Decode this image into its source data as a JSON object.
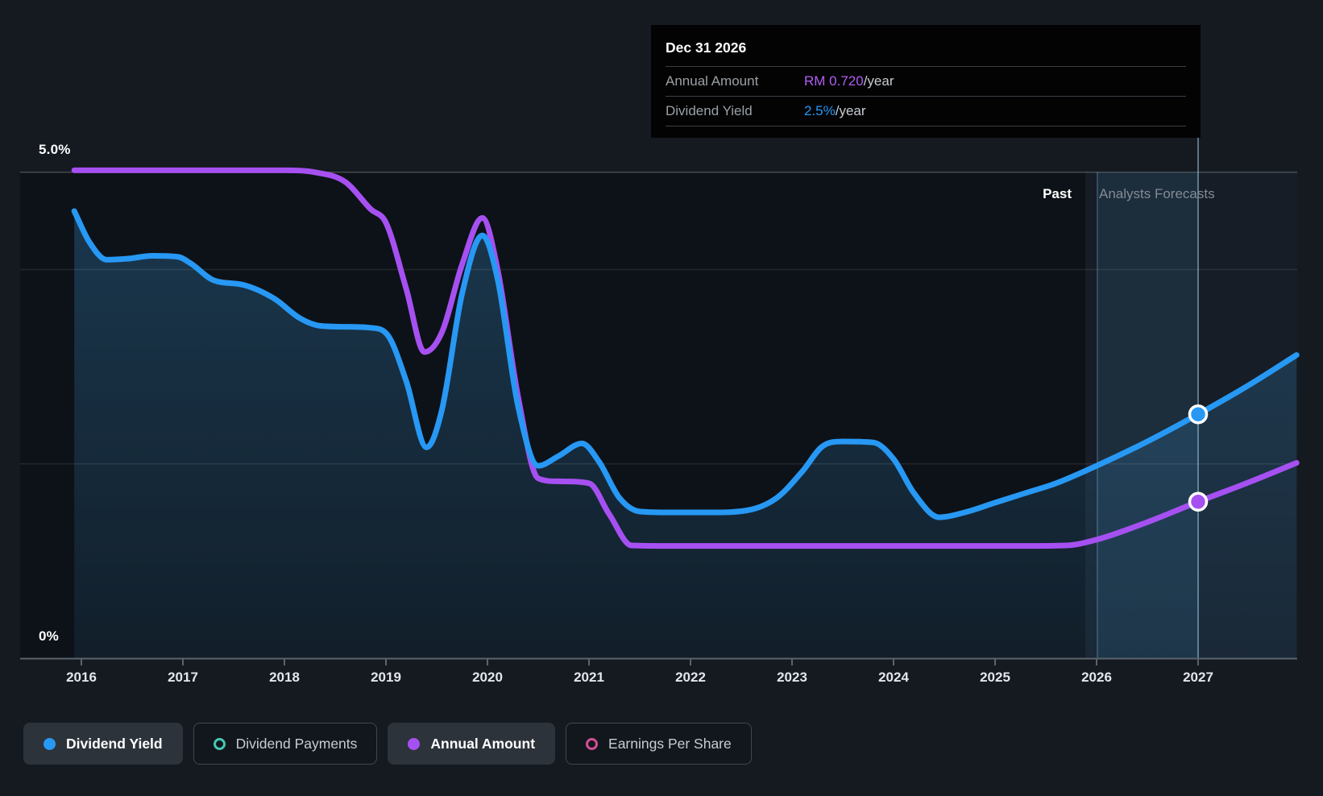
{
  "page": {
    "background": "#151a21"
  },
  "tooltip": {
    "title": "Dec 31 2026",
    "rows": [
      {
        "label": "Annual Amount",
        "value": "RM 0.720",
        "suffix": "/year",
        "value_color": "#b15ef5"
      },
      {
        "label": "Dividend Yield",
        "value": "2.5%",
        "suffix": "/year",
        "value_color": "#2798f4"
      }
    ]
  },
  "region_labels": {
    "past": "Past",
    "forecasts": "Analysts Forecasts"
  },
  "legend": {
    "items": [
      {
        "label": "Dividend Yield",
        "color": "#2798f4",
        "swatch": "filled",
        "active": true
      },
      {
        "label": "Dividend Payments",
        "color": "#45c7b3",
        "swatch": "outline",
        "active": false
      },
      {
        "label": "Annual Amount",
        "color": "#a650f2",
        "swatch": "filled",
        "active": true
      },
      {
        "label": "Earnings Per Share",
        "color": "#d04f96",
        "swatch": "outline",
        "active": false
      }
    ]
  },
  "chart_data": {
    "type": "line",
    "title": "Dividend yield past performance and analyst forecast",
    "x_axis": {
      "tick_labels": [
        "2016",
        "2017",
        "2018",
        "2019",
        "2020",
        "2021",
        "2022",
        "2023",
        "2024",
        "2025",
        "2026",
        "2027"
      ],
      "tick_years": [
        2016,
        2017,
        2018,
        2019,
        2020,
        2021,
        2022,
        2023,
        2024,
        2025,
        2026,
        2027
      ],
      "range": [
        2015.9,
        2028.0
      ]
    },
    "y_axis": {
      "label": "Dividend Yield",
      "unit": "%",
      "range": [
        0,
        5
      ],
      "top_label": "5.0%",
      "bottom_label": "0%",
      "gridlines_pct": [
        5,
        4,
        2
      ]
    },
    "regions": {
      "past_until_year": 2025.89,
      "highlight_year_range": [
        2026,
        2027
      ]
    },
    "hover": {
      "date": "Dec 31 2026",
      "year": 2027.0,
      "dividend_yield_pct": 2.5,
      "annual_amount": "RM 0.720/year"
    },
    "series": [
      {
        "name": "Dividend Yield",
        "color": "#2798f4",
        "style": "line-with-area",
        "points": [
          [
            2015.93,
            4.6
          ],
          [
            2016.08,
            4.28
          ],
          [
            2016.25,
            4.1
          ],
          [
            2016.45,
            4.11
          ],
          [
            2016.7,
            4.14
          ],
          [
            2016.95,
            4.13
          ],
          [
            2017.08,
            4.06
          ],
          [
            2017.3,
            3.89
          ],
          [
            2017.6,
            3.84
          ],
          [
            2017.9,
            3.7
          ],
          [
            2018.15,
            3.5
          ],
          [
            2018.35,
            3.42
          ],
          [
            2018.6,
            3.41
          ],
          [
            2018.85,
            3.4
          ],
          [
            2019.02,
            3.32
          ],
          [
            2019.2,
            2.85
          ],
          [
            2019.4,
            2.17
          ],
          [
            2019.55,
            2.55
          ],
          [
            2019.75,
            3.75
          ],
          [
            2019.95,
            4.35
          ],
          [
            2020.1,
            3.9
          ],
          [
            2020.3,
            2.6
          ],
          [
            2020.5,
            1.98
          ],
          [
            2020.7,
            2.08
          ],
          [
            2020.93,
            2.21
          ],
          [
            2021.1,
            2.02
          ],
          [
            2021.3,
            1.65
          ],
          [
            2021.5,
            1.51
          ],
          [
            2021.8,
            1.5
          ],
          [
            2022.2,
            1.5
          ],
          [
            2022.55,
            1.52
          ],
          [
            2022.85,
            1.65
          ],
          [
            2023.1,
            1.92
          ],
          [
            2023.3,
            2.18
          ],
          [
            2023.5,
            2.23
          ],
          [
            2023.8,
            2.22
          ],
          [
            2024.0,
            2.05
          ],
          [
            2024.2,
            1.7
          ],
          [
            2024.45,
            1.45
          ],
          [
            2024.7,
            1.5
          ],
          [
            2025.0,
            1.6
          ],
          [
            2025.3,
            1.7
          ],
          [
            2025.6,
            1.8
          ],
          [
            2026.0,
            1.98
          ],
          [
            2026.5,
            2.23
          ],
          [
            2027.0,
            2.51
          ],
          [
            2027.5,
            2.81
          ],
          [
            2027.97,
            3.12
          ]
        ]
      },
      {
        "name": "Annual Amount",
        "color": "#a650f2",
        "style": "line",
        "unit_note": "overlaid on yield axis; known value RM 0.720/year at Dec 31 2026",
        "points": [
          [
            2015.93,
            5.02
          ],
          [
            2016.5,
            5.02
          ],
          [
            2017.0,
            5.02
          ],
          [
            2017.5,
            5.02
          ],
          [
            2018.0,
            5.02
          ],
          [
            2018.3,
            5.0
          ],
          [
            2018.6,
            4.9
          ],
          [
            2018.85,
            4.62
          ],
          [
            2019.0,
            4.48
          ],
          [
            2019.2,
            3.8
          ],
          [
            2019.38,
            3.15
          ],
          [
            2019.55,
            3.35
          ],
          [
            2019.75,
            4.05
          ],
          [
            2019.95,
            4.53
          ],
          [
            2020.1,
            4.0
          ],
          [
            2020.3,
            2.7
          ],
          [
            2020.5,
            1.85
          ],
          [
            2020.7,
            1.82
          ],
          [
            2021.0,
            1.8
          ],
          [
            2021.2,
            1.48
          ],
          [
            2021.42,
            1.16
          ],
          [
            2021.8,
            1.155
          ],
          [
            2022.5,
            1.155
          ],
          [
            2023.5,
            1.155
          ],
          [
            2024.5,
            1.155
          ],
          [
            2025.3,
            1.155
          ],
          [
            2025.7,
            1.16
          ],
          [
            2026.0,
            1.22
          ],
          [
            2026.5,
            1.4
          ],
          [
            2027.0,
            1.61
          ],
          [
            2027.5,
            1.81
          ],
          [
            2027.97,
            2.01
          ]
        ]
      }
    ],
    "markers": [
      {
        "series": "Dividend Yield",
        "year": 2027.0,
        "pct": 2.51,
        "color": "#2798f4"
      },
      {
        "series": "Annual Amount",
        "year": 2027.0,
        "pct": 1.61,
        "color": "#a650f2"
      }
    ]
  }
}
